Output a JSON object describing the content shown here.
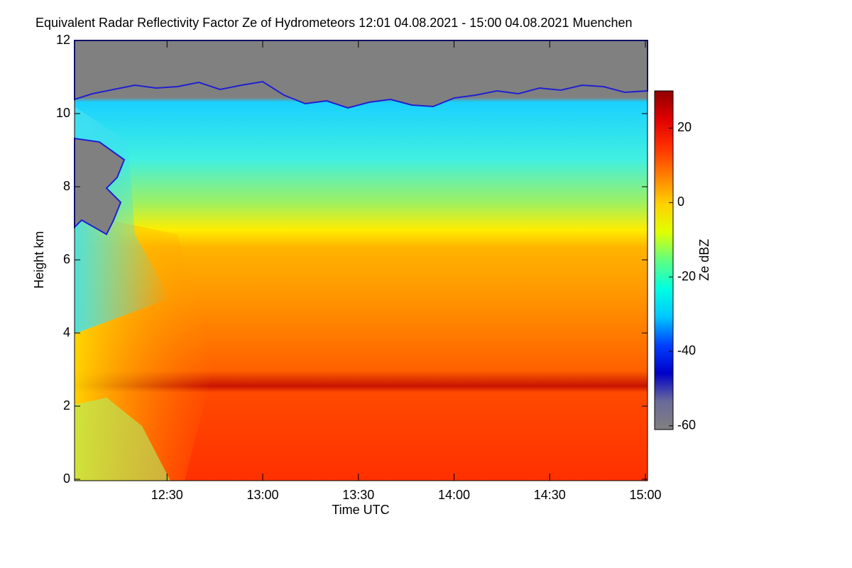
{
  "chart_data": {
    "type": "heatmap",
    "title": "Equivalent Radar Reflectivity Factor Ze of Hydrometeors   12:01 04.08.2021 - 15:00 04.08.2021 Muenchen",
    "x_label": "Time UTC",
    "y_label": "Height km",
    "colorbar_label": "Ze dBZ",
    "xlim": [
      721,
      900
    ],
    "xticks": [
      {
        "value": 750,
        "label": "12:30"
      },
      {
        "value": 780,
        "label": "13:00"
      },
      {
        "value": 810,
        "label": "13:30"
      },
      {
        "value": 840,
        "label": "14:00"
      },
      {
        "value": 870,
        "label": "14:30"
      },
      {
        "value": 900,
        "label": "15:00"
      }
    ],
    "ylim": [
      0,
      12
    ],
    "yticks": [
      0,
      2,
      4,
      6,
      8,
      10,
      12
    ],
    "zlim": [
      -61,
      30
    ],
    "zticks": [
      -60,
      -40,
      -20,
      0,
      20
    ],
    "colorbar_colors": [
      "#808080",
      "#6a6a9a",
      "#0000c8",
      "#0040ff",
      "#00c8ff",
      "#00ffe0",
      "#60ff80",
      "#e0ff00",
      "#ffd000",
      "#ff8000",
      "#ff3000",
      "#e00000",
      "#900000"
    ]
  }
}
